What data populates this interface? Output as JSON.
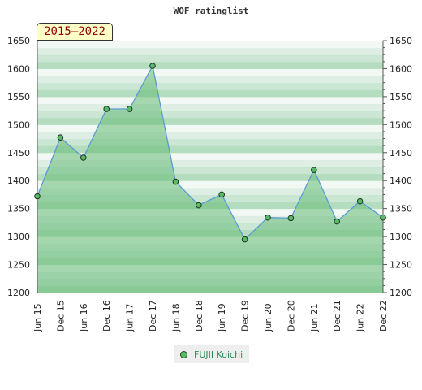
{
  "chart_data": {
    "type": "area",
    "title": "WOF ratinglist",
    "period_label": "2015–2022",
    "categories": [
      "Jun 15",
      "Dec 15",
      "Jun 16",
      "Dec 16",
      "Jun 17",
      "Dec 17",
      "Jun 18",
      "Dec 18",
      "Jun 19",
      "Dec 19",
      "Jun 20",
      "Dec 20",
      "Jun 21",
      "Dec 21",
      "Jun 22",
      "Dec 22"
    ],
    "series": [
      {
        "name": "FUJII Koichi",
        "values": [
          1372,
          1477,
          1441,
          1528,
          1528,
          1605,
          1398,
          1356,
          1375,
          1295,
          1334,
          1333,
          1419,
          1327,
          1363,
          1334
        ]
      }
    ],
    "ylim": [
      1200,
      1650
    ],
    "yticks": [
      1200,
      1250,
      1300,
      1350,
      1400,
      1450,
      1500,
      1550,
      1600,
      1650
    ],
    "legend_position": "bottom-center",
    "colors": {
      "line": "#5b9bd5",
      "area": "#66bb77",
      "marker": "#55bb66"
    }
  }
}
